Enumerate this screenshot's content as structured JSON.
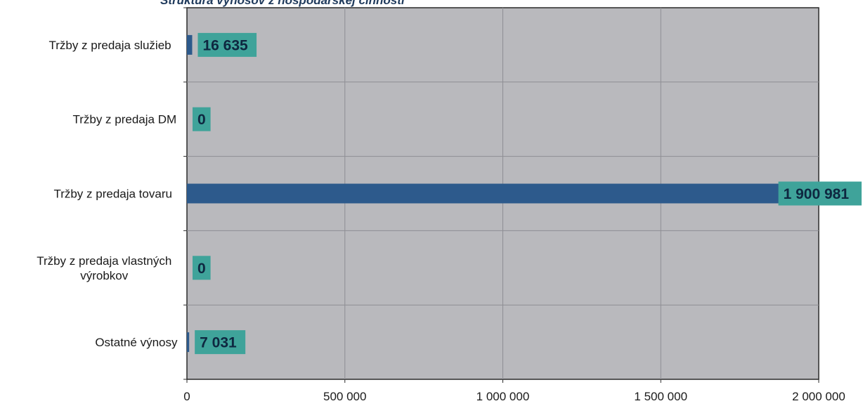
{
  "chart_data": {
    "type": "bar",
    "orientation": "horizontal",
    "title": "Štruktúra výnosov z hospodárskej činnosti",
    "categories": [
      "Tržby z predaja služieb",
      "Tržby z predaja DM",
      "Tržby z predaja tovaru",
      "Tržby z predaja vlastných výrobkov",
      "Ostatné výnosy"
    ],
    "category_lines": [
      [
        "Tržby z predaja služieb"
      ],
      [
        "Tržby z predaja DM"
      ],
      [
        "Tržby z predaja tovaru"
      ],
      [
        "Tržby z predaja vlastných",
        "výrobkov"
      ],
      [
        "Ostatné výnosy"
      ]
    ],
    "values": [
      16635,
      0,
      1900981,
      0,
      7031
    ],
    "data_labels": [
      "16 635",
      "0",
      "1 900 981",
      "0",
      "7 031"
    ],
    "xlim": [
      0,
      2000000
    ],
    "xticks": [
      0,
      500000,
      1000000,
      1500000,
      2000000
    ],
    "xtick_labels": [
      "0",
      "500 000",
      "1 000 000",
      "1 500 000",
      "2 000 000"
    ],
    "xlabel": "",
    "ylabel": "",
    "grid": true,
    "legend": "none",
    "colors": {
      "plot_background": "#b9b9bd",
      "bar": "#2d5a8c",
      "data_label_background": "#3fa39a",
      "gridline": "#8e8e94",
      "axis": "#2a2a2a"
    }
  }
}
